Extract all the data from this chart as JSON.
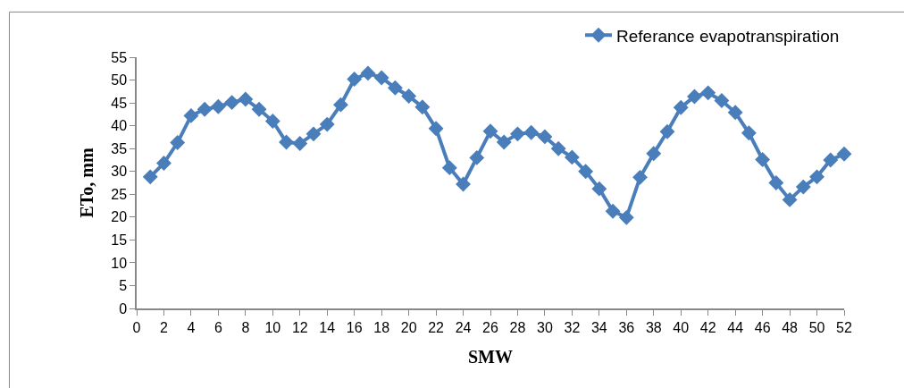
{
  "chart_data": {
    "type": "line",
    "xlabel": "SMW",
    "ylabel": "ETo, mm",
    "x": [
      1,
      2,
      3,
      4,
      5,
      6,
      7,
      8,
      9,
      10,
      11,
      12,
      13,
      14,
      15,
      16,
      17,
      18,
      19,
      20,
      21,
      22,
      23,
      24,
      25,
      26,
      27,
      28,
      29,
      30,
      31,
      32,
      33,
      34,
      35,
      36,
      37,
      38,
      39,
      40,
      41,
      42,
      43,
      44,
      45,
      46,
      47,
      48,
      49,
      50,
      51,
      52
    ],
    "series": [
      {
        "name": "Referance evapotranspiration",
        "color": "#4a7ebb",
        "values": [
          28.8,
          31.8,
          36.3,
          42.2,
          43.6,
          44.2,
          45.1,
          45.8,
          43.6,
          41.0,
          36.4,
          36.1,
          38.2,
          40.3,
          44.6,
          50.2,
          51.5,
          50.5,
          48.3,
          46.5,
          44.1,
          39.4,
          30.8,
          27.2,
          33.0,
          38.8,
          36.4,
          38.2,
          38.5,
          37.6,
          35.0,
          33.1,
          30.0,
          26.2,
          21.3,
          19.9,
          28.7,
          33.9,
          38.7,
          44.0,
          46.4,
          47.2,
          45.5,
          42.9,
          38.4,
          32.6,
          27.5,
          23.8,
          26.6,
          28.8,
          32.5,
          33.8
        ]
      }
    ],
    "xlim": [
      0,
      52
    ],
    "xticks": [
      0,
      2,
      4,
      6,
      8,
      10,
      12,
      14,
      16,
      18,
      20,
      22,
      24,
      26,
      28,
      30,
      32,
      34,
      36,
      38,
      40,
      42,
      44,
      46,
      48,
      50,
      52
    ],
    "ylim": [
      0,
      55
    ],
    "yticks": [
      0,
      5,
      10,
      15,
      20,
      25,
      30,
      35,
      40,
      45,
      50,
      55
    ],
    "legend": "top right",
    "marker": "diamond",
    "line_style": "solid"
  }
}
